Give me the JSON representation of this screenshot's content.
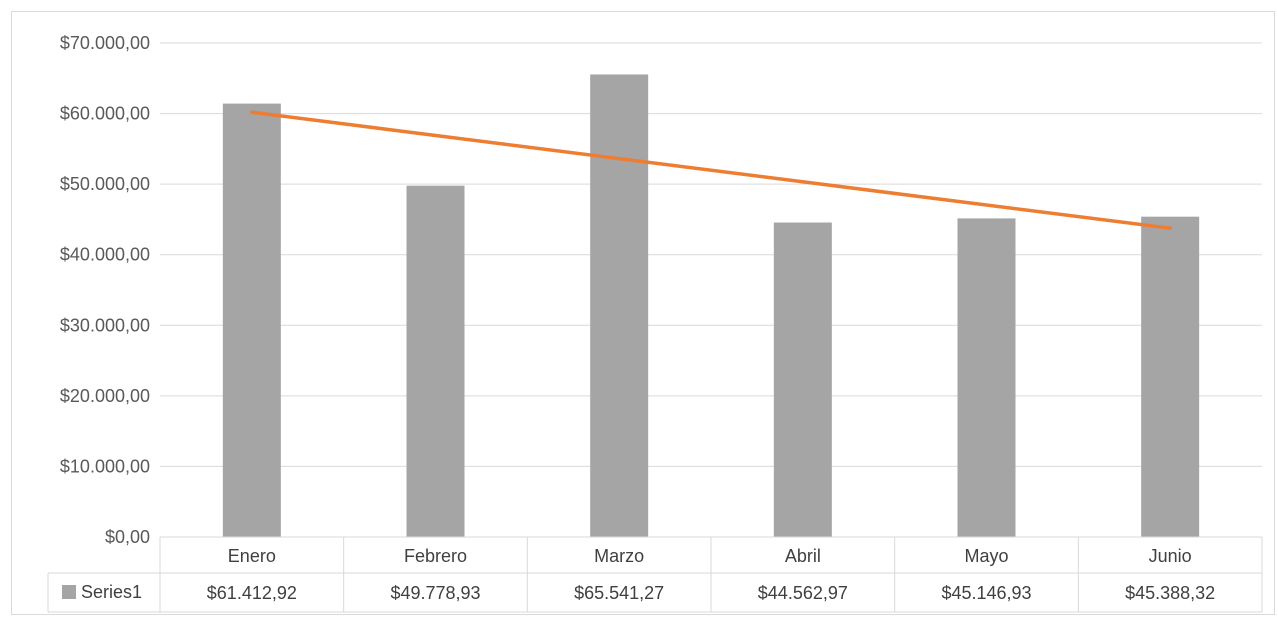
{
  "chart_data": {
    "type": "bar",
    "categories": [
      "Enero",
      "Febrero",
      "Marzo",
      "Abril",
      "Mayo",
      "Junio"
    ],
    "series": [
      {
        "name": "Series1",
        "values": [
          61412.92,
          49778.93,
          65541.27,
          44562.97,
          45146.93,
          45388.32
        ],
        "value_labels": [
          "$61.412,92",
          "$49.778,93",
          "$65.541,27",
          "$44.562,97",
          "$45.146,93",
          "$45.388,32"
        ],
        "color": "#a5a5a5"
      }
    ],
    "trendline": {
      "type": "linear",
      "color": "#ed7d31"
    },
    "y_ticks": [
      0,
      10000,
      20000,
      30000,
      40000,
      50000,
      60000,
      70000
    ],
    "y_tick_labels": [
      "$0,00",
      "$10.000,00",
      "$20.000,00",
      "$30.000,00",
      "$40.000,00",
      "$50.000,00",
      "$60.000,00",
      "$70.000,00"
    ],
    "ylim": [
      0,
      70000
    ],
    "grid": true,
    "data_table": true,
    "title": "",
    "xlabel": "",
    "ylabel": ""
  }
}
